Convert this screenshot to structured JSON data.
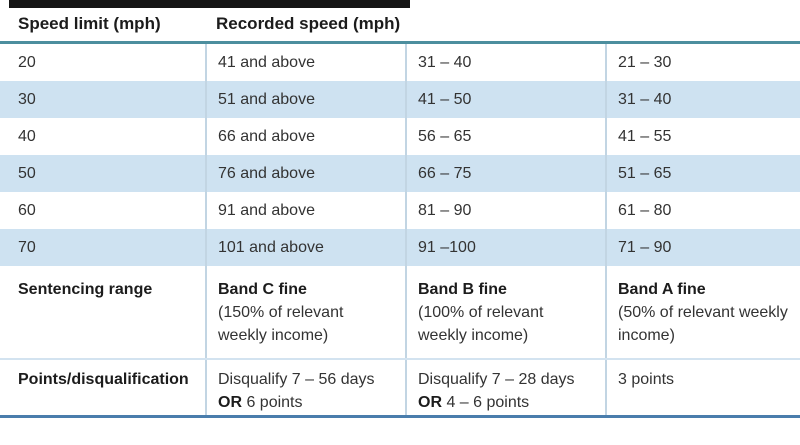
{
  "figure": {
    "header": {
      "col1": "Speed limit (mph)",
      "col2": "Recorded speed (mph)"
    },
    "rows": [
      {
        "limit": "20",
        "band_c": "41 and above",
        "band_b": "31 – 40",
        "band_a": "21 – 30"
      },
      {
        "limit": "30",
        "band_c": "51 and above",
        "band_b": "41 – 50",
        "band_a": "31 – 40"
      },
      {
        "limit": "40",
        "band_c": "66 and above",
        "band_b": "56 – 65",
        "band_a": "41 – 55"
      },
      {
        "limit": "50",
        "band_c": "76 and above",
        "band_b": "66 – 75",
        "band_a": "51 – 65"
      },
      {
        "limit": "60",
        "band_c": "91 and above",
        "band_b": "81 – 90",
        "band_a": "61 – 80"
      },
      {
        "limit": "70",
        "band_c": "101 and above",
        "band_b": "91 –100",
        "band_a": "71 – 90"
      }
    ],
    "sentencing": {
      "label": "Sentencing range",
      "cells": [
        {
          "name": "Band C fine",
          "detail": "(150% of relevant weekly income)"
        },
        {
          "name": "Band B fine",
          "detail": "(100% of relevant weekly income)"
        },
        {
          "name": "Band A fine",
          "detail": "(50% of relevant weekly income)"
        }
      ]
    },
    "points": {
      "label": "Points/disqualification",
      "cells": [
        {
          "line1": "Disqualify 7 – 56 days",
          "or": "OR",
          "line2": "6 points"
        },
        {
          "line1": "Disqualify 7 – 28 days",
          "or": "OR",
          "line2": "4 – 6 points"
        },
        {
          "line1": "3 points",
          "or": "",
          "line2": ""
        }
      ]
    }
  },
  "colors": {
    "top_bar": "#151515",
    "teal_rule": "#4c8e9e",
    "row_blue": "#cee2f1",
    "divider": "#c2d5e3",
    "points_separator": "#d3e3f0",
    "bottom_rule": "#4a7dac",
    "text": "#333333",
    "bold_text": "#1c1c1c"
  },
  "chart_data": {
    "type": "table",
    "title": "Speeding sentencing guidelines",
    "columns": [
      "Speed limit (mph)",
      "Recorded speed (mph) – Band C",
      "Recorded speed (mph) – Band B",
      "Recorded speed (mph) – Band A"
    ],
    "rows": [
      [
        "20",
        "41 and above",
        "31 – 40",
        "21 – 30"
      ],
      [
        "30",
        "51 and above",
        "41 – 50",
        "31 – 40"
      ],
      [
        "40",
        "66 and above",
        "56 – 65",
        "41 – 55"
      ],
      [
        "50",
        "76 and above",
        "66 – 75",
        "51 – 65"
      ],
      [
        "60",
        "91 and above",
        "81 – 90",
        "61 – 80"
      ],
      [
        "70",
        "101 and above",
        "91 –100",
        "71 – 90"
      ],
      [
        "Sentencing range",
        "Band C fine (150% of relevant weekly income)",
        "Band B fine (100% of relevant weekly income)",
        "Band A fine (50% of relevant weekly income)"
      ],
      [
        "Points/disqualification",
        "Disqualify 7 – 56 days OR 6 points",
        "Disqualify 7 – 28 days OR 4 – 6 points",
        "3 points"
      ]
    ],
    "layout_hints": {
      "alternating_row_color": "#cee2f1",
      "header_rule_color": "#4c8e9e",
      "bottom_rule_color": "#4a7dac"
    }
  }
}
